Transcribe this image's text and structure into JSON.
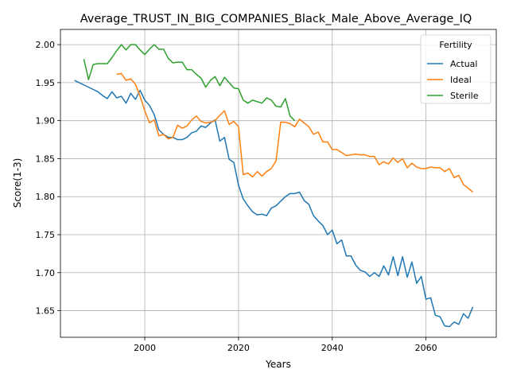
{
  "chart_data": {
    "type": "line",
    "title": "Average_TRUST_IN_BIG_COMPANIES_Black_Male_Above_Average_IQ",
    "xlabel": "Years",
    "ylabel": "Score(1-3)",
    "xlim": [
      1982,
      2075
    ],
    "ylim": [
      1.615,
      2.02
    ],
    "xticks": [
      2000,
      2020,
      2040,
      2060
    ],
    "yticks": [
      1.65,
      1.7,
      1.75,
      1.8,
      1.85,
      1.9,
      1.95,
      2.0
    ],
    "ytick_labels": [
      "1.65",
      "1.70",
      "1.75",
      "1.80",
      "1.85",
      "1.90",
      "1.95",
      "2.00"
    ],
    "grid": true,
    "legend": {
      "title": "Fertility",
      "position": "top-right"
    },
    "series": [
      {
        "name": "Actual",
        "color": "#1f77b4",
        "x": [
          1985,
          1986,
          1987,
          1988,
          1989,
          1990,
          1991,
          1992,
          1993,
          1994,
          1995,
          1996,
          1997,
          1998,
          1999,
          2000,
          2001,
          2002,
          2003,
          2004,
          2005,
          2006,
          2007,
          2008,
          2009,
          2010,
          2011,
          2012,
          2013,
          2014,
          2015,
          2016,
          2017,
          2018,
          2019,
          2020,
          2021,
          2022,
          2023,
          2024,
          2025,
          2026,
          2027,
          2028,
          2029,
          2030,
          2031,
          2032,
          2033,
          2034,
          2035,
          2036,
          2037,
          2038,
          2039,
          2040,
          2041,
          2042,
          2043,
          2044,
          2045,
          2046,
          2047,
          2048,
          2049,
          2050,
          2051,
          2052,
          2053,
          2054,
          2055,
          2056,
          2057,
          2058,
          2059,
          2060,
          2061,
          2062,
          2063,
          2064,
          2065,
          2066,
          2067,
          2068,
          2069,
          2070
        ],
        "values": [
          1.953,
          1.95,
          1.947,
          1.944,
          1.941,
          1.938,
          1.933,
          1.929,
          1.938,
          1.93,
          1.932,
          1.923,
          1.936,
          1.928,
          1.94,
          1.927,
          1.92,
          1.908,
          1.888,
          1.882,
          1.878,
          1.878,
          1.875,
          1.875,
          1.878,
          1.884,
          1.886,
          1.893,
          1.891,
          1.897,
          1.901,
          1.873,
          1.878,
          1.849,
          1.845,
          1.815,
          1.797,
          1.788,
          1.78,
          1.776,
          1.777,
          1.775,
          1.785,
          1.788,
          1.794,
          1.8,
          1.804,
          1.804,
          1.806,
          1.795,
          1.79,
          1.775,
          1.768,
          1.762,
          1.75,
          1.756,
          1.738,
          1.743,
          1.722,
          1.722,
          1.71,
          1.703,
          1.701,
          1.695,
          1.7,
          1.695,
          1.709,
          1.697,
          1.721,
          1.696,
          1.721,
          1.694,
          1.714,
          1.686,
          1.695,
          1.665,
          1.667,
          1.644,
          1.642,
          1.63,
          1.629,
          1.635,
          1.632,
          1.646,
          1.64,
          1.655
        ]
      },
      {
        "name": "Ideal",
        "color": "#ff7f0e",
        "x": [
          1994,
          1995,
          1996,
          1997,
          1998,
          1999,
          2000,
          2001,
          2002,
          2003,
          2004,
          2005,
          2006,
          2007,
          2008,
          2009,
          2010,
          2011,
          2012,
          2013,
          2014,
          2015,
          2016,
          2017,
          2018,
          2019,
          2020,
          2021,
          2022,
          2023,
          2024,
          2025,
          2026,
          2027,
          2028,
          2029,
          2030,
          2031,
          2032,
          2033,
          2034,
          2035,
          2036,
          2037,
          2038,
          2039,
          2040,
          2041,
          2042,
          2043,
          2044,
          2045,
          2046,
          2047,
          2048,
          2049,
          2050,
          2051,
          2052,
          2053,
          2054,
          2055,
          2056,
          2057,
          2058,
          2059,
          2060,
          2061,
          2062,
          2063,
          2064,
          2065,
          2066,
          2067,
          2068,
          2069,
          2070
        ],
        "values": [
          1.961,
          1.962,
          1.953,
          1.955,
          1.948,
          1.932,
          1.913,
          1.897,
          1.901,
          1.88,
          1.882,
          1.876,
          1.878,
          1.894,
          1.89,
          1.893,
          1.901,
          1.906,
          1.899,
          1.897,
          1.898,
          1.9,
          1.907,
          1.913,
          1.895,
          1.899,
          1.892,
          1.829,
          1.831,
          1.826,
          1.833,
          1.827,
          1.833,
          1.837,
          1.847,
          1.898,
          1.898,
          1.896,
          1.892,
          1.902,
          1.897,
          1.892,
          1.882,
          1.885,
          1.872,
          1.872,
          1.862,
          1.862,
          1.858,
          1.854,
          1.855,
          1.856,
          1.855,
          1.855,
          1.853,
          1.853,
          1.842,
          1.846,
          1.843,
          1.851,
          1.845,
          1.85,
          1.838,
          1.844,
          1.839,
          1.837,
          1.837,
          1.839,
          1.838,
          1.838,
          1.833,
          1.837,
          1.825,
          1.828,
          1.816,
          1.811,
          1.806
        ]
      },
      {
        "name": "Sterile",
        "color": "#2ca02c",
        "x": [
          1987,
          1988,
          1989,
          1990,
          1991,
          1992,
          1993,
          1994,
          1995,
          1996,
          1997,
          1998,
          1999,
          2000,
          2001,
          2002,
          2003,
          2004,
          2005,
          2006,
          2007,
          2008,
          2009,
          2010,
          2011,
          2012,
          2013,
          2014,
          2015,
          2016,
          2017,
          2018,
          2019,
          2020,
          2021,
          2022,
          2023,
          2024,
          2025,
          2026,
          2027,
          2028,
          2029,
          2030,
          2031,
          2032
        ],
        "values": [
          1.981,
          1.954,
          1.974,
          1.975,
          1.975,
          1.975,
          1.983,
          1.992,
          2.0,
          1.993,
          2.0,
          2.0,
          1.993,
          1.987,
          1.994,
          2.0,
          1.994,
          1.994,
          1.982,
          1.976,
          1.977,
          1.977,
          1.967,
          1.967,
          1.961,
          1.956,
          1.944,
          1.953,
          1.958,
          1.946,
          1.957,
          1.95,
          1.943,
          1.942,
          1.927,
          1.923,
          1.927,
          1.925,
          1.923,
          1.93,
          1.927,
          1.919,
          1.918,
          1.929,
          1.906,
          1.9
        ]
      }
    ]
  }
}
